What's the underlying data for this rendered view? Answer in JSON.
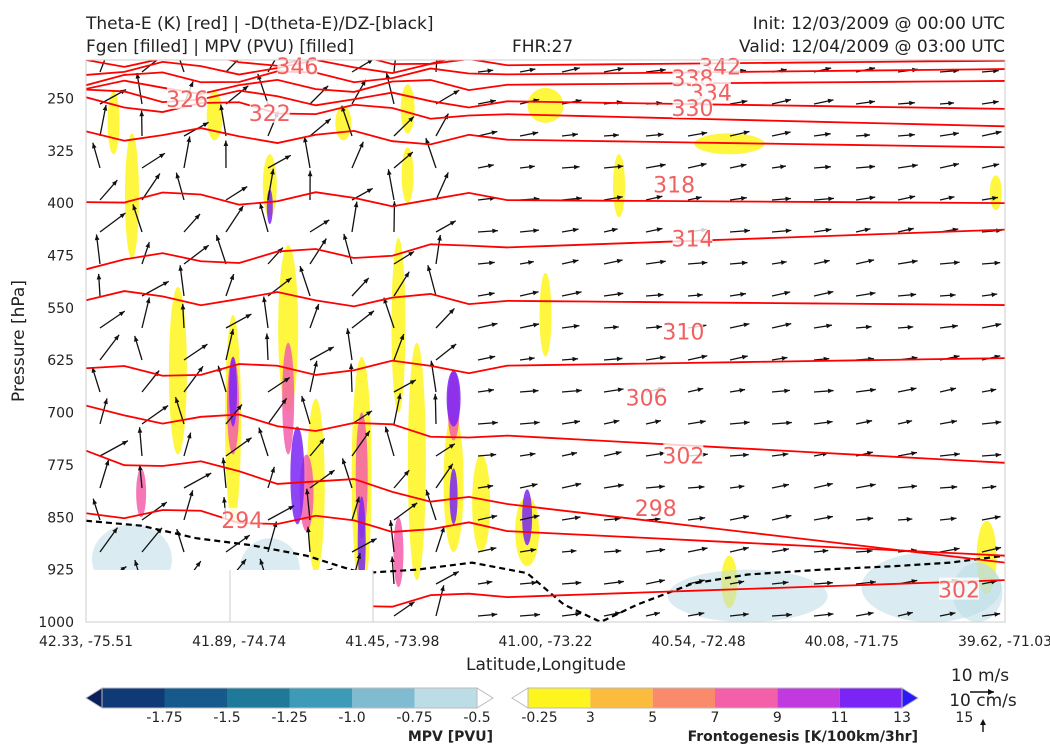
{
  "header": {
    "title_line1": "Theta-E (K) [red] | -D(theta-E)/DZ-[black]",
    "title_line2": "Fgen [filled] | MPV (PVU) [filled]",
    "fhr": "FHR:27",
    "init": "Init: 12/03/2009 @ 00:00 UTC",
    "valid": "Valid: 12/04/2009 @ 03:00 UTC"
  },
  "chart_data": {
    "type": "cross-section",
    "xlabel": "Latitude,Longitude",
    "ylabel": "Pressure [hPa]",
    "x_ticks": [
      "42.33, -75.51",
      "41.89, -74.74",
      "41.45, -73.98",
      "41.00, -73.22",
      "40.54, -72.48",
      "40.08, -71.75",
      "39.62, -71.03"
    ],
    "y_ticks": [
      250,
      325,
      400,
      475,
      550,
      625,
      700,
      775,
      850,
      925,
      1000
    ],
    "y_range": [
      1000,
      195
    ],
    "y_reversed": true,
    "theta_e_contours": [
      {
        "label": "346",
        "pressure_left": 195,
        "pressure_right": 192,
        "label_x_frac": 0.23,
        "label_p": 205
      },
      {
        "label": "342",
        "pressure_left": 208,
        "pressure_right": 196,
        "label_x_frac": 0.69,
        "label_p": 206
      },
      {
        "label": "338",
        "pressure_left": 222,
        "pressure_right": 208,
        "label_x_frac": 0.66,
        "label_p": 222
      },
      {
        "label": "334",
        "pressure_left": 235,
        "pressure_right": 225,
        "label_x_frac": 0.68,
        "label_p": 243
      },
      {
        "label": "330",
        "pressure_left": 245,
        "pressure_right": 265,
        "label_x_frac": 0.66,
        "label_p": 265
      },
      {
        "label": "326",
        "pressure_left": 258,
        "pressure_right": 290,
        "label_x_frac": 0.11,
        "label_p": 252
      },
      {
        "label": "322",
        "pressure_left": 300,
        "pressure_right": 320,
        "label_x_frac": 0.2,
        "label_p": 272
      },
      {
        "label": "318",
        "pressure_left": 392,
        "pressure_right": 400,
        "label_x_frac": 0.64,
        "label_p": 375
      },
      {
        "label": "314",
        "pressure_left": 485,
        "pressure_right": 438,
        "label_x_frac": 0.66,
        "label_p": 452
      },
      {
        "label": "310",
        "pressure_left": 535,
        "pressure_right": 546,
        "label_x_frac": 0.65,
        "label_p": 585
      },
      {
        "label": "306",
        "pressure_left": 642,
        "pressure_right": 622,
        "label_x_frac": 0.61,
        "label_p": 680
      },
      {
        "label": "302",
        "pressure_left": 700,
        "pressure_right": 772,
        "label_x_frac": 0.65,
        "label_p": 763
      },
      {
        "label": "298",
        "pressure_left": 760,
        "pressure_right": 915,
        "label_x_frac": 0.62,
        "label_p": 838
      },
      {
        "label": "294",
        "pressure_left": 840,
        "pressure_right": 905,
        "label_x_frac": 0.17,
        "label_p": 855
      },
      {
        "label": "302",
        "pressure_left": 985,
        "pressure_right": 940,
        "label_x_frac": 0.95,
        "label_p": 955
      }
    ],
    "mpv_colorbar": {
      "label": "MPV [PVU]",
      "ticks": [
        "-1.75",
        "-1.5",
        "-1.25",
        "-1.0",
        "-0.75",
        "-0.5",
        "-0.25"
      ],
      "colors": [
        "#0a1f5c",
        "#0f3a75",
        "#155a8a",
        "#1f7a9a",
        "#3d9bb8",
        "#7fbcd2",
        "#bcdce6",
        "#ffffff"
      ]
    },
    "fgen_colorbar": {
      "label": "Frontogenesis [K/100km/3hr]",
      "ticks": [
        "3",
        "5",
        "7",
        "9",
        "11",
        "13",
        "15"
      ],
      "colors": [
        "#ffffff",
        "#fff51e",
        "#fbbb3c",
        "#f98a6a",
        "#f45faa",
        "#c13ae0",
        "#7a24f5",
        "#2a1af7"
      ]
    },
    "wind_reference": {
      "label1": "10 m/s",
      "label2": "10 cm/s"
    }
  }
}
